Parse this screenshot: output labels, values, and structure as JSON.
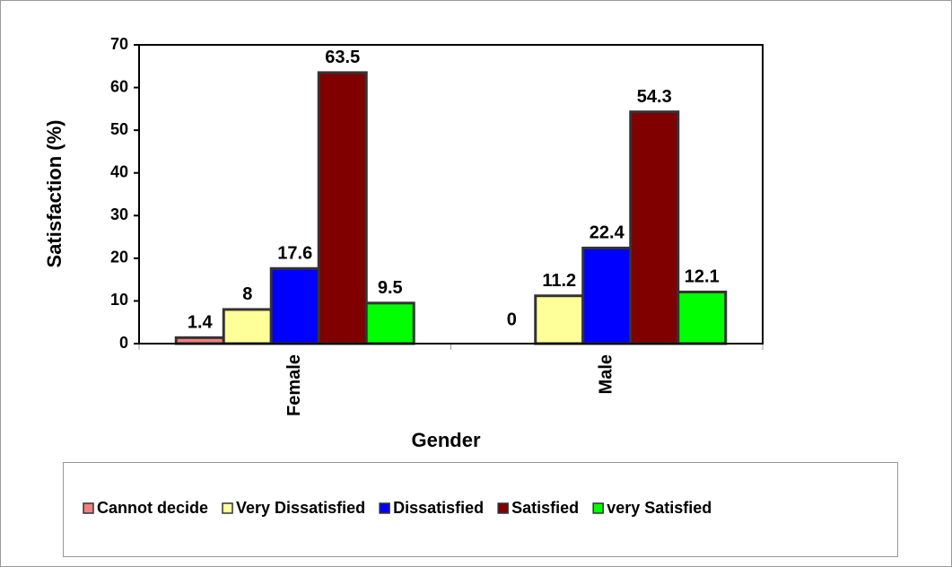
{
  "chart_data": {
    "type": "bar",
    "title": null,
    "x_label": "Gender",
    "y_label": "Satisfaction (%)",
    "categories": [
      "Female",
      "Male"
    ],
    "series": [
      {
        "name": "Cannot decide",
        "color": "#f08080",
        "values": [
          1.4,
          0
        ]
      },
      {
        "name": "Very Dissatisfied",
        "color": "#ffff99",
        "values": [
          8,
          11.2
        ]
      },
      {
        "name": "Dissatisfied",
        "color": "#0000ff",
        "values": [
          17.6,
          22.4
        ]
      },
      {
        "name": "Satisfied",
        "color": "#800000",
        "values": [
          63.5,
          54.3
        ]
      },
      {
        "name": "very Satisfied",
        "color": "#00ff00",
        "values": [
          9.5,
          12.1
        ]
      }
    ],
    "ylim": [
      0,
      70
    ],
    "yticks": [
      0,
      10,
      20,
      30,
      40,
      50,
      60,
      70
    ],
    "legend": "bottom"
  }
}
